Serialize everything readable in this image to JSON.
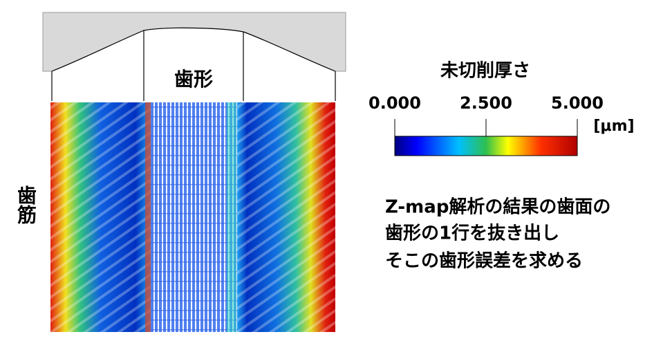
{
  "header": {
    "profile_label": "歯形",
    "lead_label": "歯筋"
  },
  "colorbar": {
    "title": "未切削厚さ",
    "unit": "[μm]",
    "lim": [
      0,
      5
    ],
    "ticks": [
      {
        "value": 0,
        "label": "0.000"
      },
      {
        "value": 2.5,
        "label": "2.500"
      },
      {
        "value": 5,
        "label": "5.000"
      }
    ]
  },
  "note": {
    "lines": [
      "Z-map解析の結果の歯面の",
      "歯形の1行を抜き出し",
      "そこの歯形誤差を求める"
    ]
  }
}
